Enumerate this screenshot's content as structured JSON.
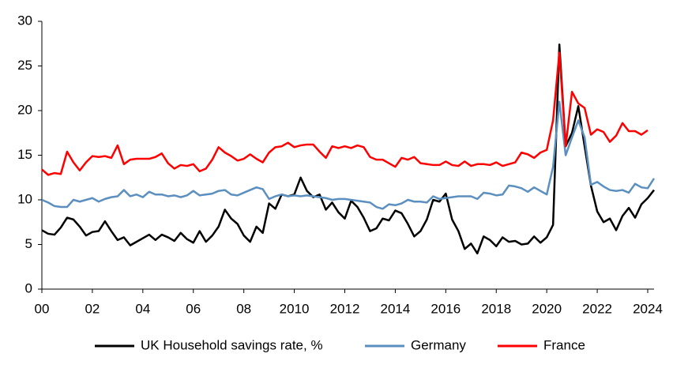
{
  "chart_data": {
    "type": "line",
    "x": [
      2000,
      2000.25,
      2000.5,
      2000.75,
      2001,
      2001.25,
      2001.5,
      2001.75,
      2002,
      2002.25,
      2002.5,
      2002.75,
      2003,
      2003.25,
      2003.5,
      2003.75,
      2004,
      2004.25,
      2004.5,
      2004.75,
      2005,
      2005.25,
      2005.5,
      2005.75,
      2006,
      2006.25,
      2006.5,
      2006.75,
      2007,
      2007.25,
      2007.5,
      2007.75,
      2008,
      2008.25,
      2008.5,
      2008.75,
      2009,
      2009.25,
      2009.5,
      2009.75,
      2010,
      2010.25,
      2010.5,
      2010.75,
      2011,
      2011.25,
      2011.5,
      2011.75,
      2012,
      2012.25,
      2012.5,
      2012.75,
      2013,
      2013.25,
      2013.5,
      2013.75,
      2014,
      2014.25,
      2014.5,
      2014.75,
      2015,
      2015.25,
      2015.5,
      2015.75,
      2016,
      2016.25,
      2016.5,
      2016.75,
      2017,
      2017.25,
      2017.5,
      2017.75,
      2018,
      2018.25,
      2018.5,
      2018.75,
      2019,
      2019.25,
      2019.5,
      2019.75,
      2020,
      2020.25,
      2020.5,
      2020.75,
      2021,
      2021.25,
      2021.5,
      2021.75,
      2022,
      2022.25,
      2022.5,
      2022.75,
      2023,
      2023.25,
      2023.5,
      2023.75,
      2024,
      2024.25
    ],
    "series": [
      {
        "name": "UK Household savings rate, %",
        "color": "#000000",
        "values": [
          6.6,
          6.2,
          6.1,
          6.9,
          8.0,
          7.8,
          7.0,
          6.0,
          6.4,
          6.5,
          7.6,
          6.5,
          5.5,
          5.8,
          4.9,
          5.3,
          5.7,
          6.1,
          5.5,
          6.1,
          5.8,
          5.4,
          6.3,
          5.6,
          5.2,
          6.5,
          5.3,
          6.0,
          7.0,
          8.9,
          7.9,
          7.3,
          6.0,
          5.3,
          7.0,
          6.3,
          9.6,
          9.0,
          10.6,
          10.4,
          10.6,
          12.5,
          11.0,
          10.3,
          10.6,
          8.9,
          9.7,
          8.6,
          7.9,
          9.9,
          9.2,
          8.0,
          6.5,
          6.8,
          7.9,
          7.7,
          8.8,
          8.5,
          7.3,
          5.9,
          6.5,
          7.8,
          10.0,
          9.8,
          10.7,
          7.8,
          6.5,
          4.5,
          5.1,
          4.0,
          5.9,
          5.5,
          4.8,
          5.8,
          5.3,
          5.4,
          5.0,
          5.1,
          5.9,
          5.2,
          5.8,
          7.2,
          27.4,
          16.0,
          17.5,
          20.5,
          16.0,
          11.6,
          8.7,
          7.5,
          7.9,
          6.6,
          8.2,
          9.1,
          8.0,
          9.5,
          10.2,
          11.1
        ]
      },
      {
        "name": "Germany",
        "color": "#5b8fbf",
        "values": [
          10.0,
          9.7,
          9.3,
          9.2,
          9.2,
          10.0,
          9.8,
          10.0,
          10.2,
          9.8,
          10.1,
          10.3,
          10.4,
          11.1,
          10.4,
          10.6,
          10.3,
          10.9,
          10.6,
          10.6,
          10.4,
          10.5,
          10.3,
          10.5,
          11.0,
          10.5,
          10.6,
          10.7,
          11.0,
          11.1,
          10.6,
          10.5,
          10.8,
          11.1,
          11.4,
          11.2,
          10.1,
          10.4,
          10.6,
          10.4,
          10.5,
          10.4,
          10.5,
          10.4,
          10.3,
          10.2,
          10.0,
          10.1,
          10.1,
          10.0,
          9.9,
          9.8,
          9.7,
          9.2,
          9.0,
          9.5,
          9.4,
          9.6,
          10.0,
          9.8,
          9.8,
          9.7,
          10.4,
          10.1,
          10.2,
          10.3,
          10.4,
          10.4,
          10.4,
          10.1,
          10.8,
          10.7,
          10.5,
          10.6,
          11.6,
          11.5,
          11.3,
          10.9,
          11.4,
          11.0,
          10.6,
          13.7,
          21.0,
          15.0,
          17.0,
          18.9,
          17.0,
          11.7,
          12.0,
          11.5,
          11.1,
          11.0,
          11.1,
          10.8,
          11.8,
          11.4,
          11.3,
          12.4
        ]
      },
      {
        "name": "France",
        "color": "#ff0000",
        "values": [
          13.4,
          12.8,
          13.0,
          12.9,
          15.4,
          14.2,
          13.3,
          14.2,
          14.9,
          14.8,
          14.9,
          14.7,
          16.1,
          14.0,
          14.5,
          14.6,
          14.6,
          14.6,
          14.8,
          15.2,
          14.1,
          13.5,
          13.9,
          13.8,
          14.0,
          13.2,
          13.5,
          14.5,
          15.9,
          15.3,
          14.9,
          14.4,
          14.6,
          15.1,
          14.6,
          14.2,
          15.3,
          15.9,
          16.0,
          16.4,
          15.9,
          16.1,
          16.2,
          16.2,
          15.4,
          14.7,
          16.0,
          15.8,
          16.0,
          15.8,
          16.1,
          15.9,
          14.8,
          14.5,
          14.5,
          14.1,
          13.7,
          14.7,
          14.5,
          14.8,
          14.1,
          14.0,
          13.9,
          13.9,
          14.3,
          13.9,
          13.8,
          14.3,
          13.8,
          14.0,
          14.0,
          13.9,
          14.2,
          13.8,
          14.0,
          14.2,
          15.3,
          15.1,
          14.7,
          15.3,
          15.6,
          18.9,
          26.5,
          16.0,
          22.1,
          20.8,
          20.3,
          17.3,
          17.9,
          17.6,
          16.5,
          17.2,
          18.6,
          17.7,
          17.7,
          17.3,
          17.8,
          null
        ]
      }
    ],
    "xlim": [
      2000,
      2024.25
    ],
    "xticks": [
      {
        "value": 2000,
        "label": "00"
      },
      {
        "value": 2002,
        "label": "02"
      },
      {
        "value": 2004,
        "label": "04"
      },
      {
        "value": 2006,
        "label": "06"
      },
      {
        "value": 2008,
        "label": "08"
      },
      2010,
      2012,
      2014,
      2016,
      2018,
      2020,
      2022,
      2024
    ],
    "ylim": [
      0,
      30
    ],
    "yticks": [
      0,
      5,
      10,
      15,
      20,
      25,
      30
    ],
    "grid": false,
    "legend": "bottom"
  }
}
